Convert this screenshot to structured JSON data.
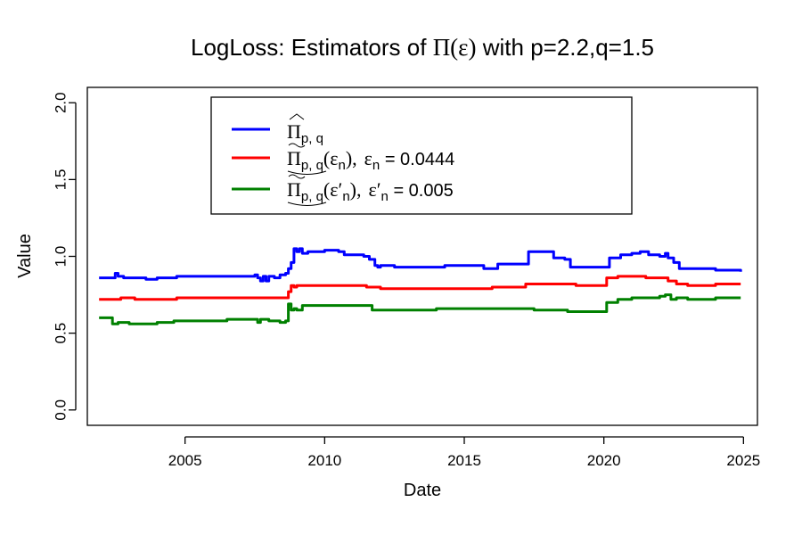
{
  "chart_data": {
    "type": "line",
    "title_prefix": "LogLoss: Estimators of ",
    "title_symbol": "Π(ε)",
    "title_suffix": " with p=2.2,q=1.5",
    "xlabel": "Date",
    "ylabel": "Value",
    "xlim": [
      2001.5,
      2025.5
    ],
    "ylim": [
      -0.1,
      2.1
    ],
    "x_ticks": [
      {
        "value": 2005,
        "label": "2005"
      },
      {
        "value": 2010,
        "label": "2010"
      },
      {
        "value": 2015,
        "label": "2015"
      },
      {
        "value": 2020,
        "label": "2020"
      },
      {
        "value": 2025,
        "label": "2025"
      }
    ],
    "y_ticks": [
      {
        "value": 0.0,
        "label": "0.0"
      },
      {
        "value": 0.5,
        "label": "0.5"
      },
      {
        "value": 1.0,
        "label": "1.0"
      },
      {
        "value": 1.5,
        "label": "1.5"
      },
      {
        "value": 2.0,
        "label": "2.0"
      }
    ],
    "legend": {
      "placement": "top-center",
      "entries": [
        {
          "symbol": "Π",
          "sub": "p, q",
          "rest": "",
          "eq_symbol": "",
          "eq_sub": "",
          "eq_value": ""
        },
        {
          "symbol": "Π",
          "sub": "p, q",
          "rest": "(ε",
          "rest_sub": "n",
          "rest_close": "),",
          "eq_symbol": "ε",
          "eq_sub": "n",
          "eq_value": " = 0.0444"
        },
        {
          "symbol": "Π",
          "sub": "p, q",
          "rest": "(ε′",
          "rest_sub": "n",
          "rest_close": "),",
          "eq_symbol": "ε′",
          "eq_sub": "n",
          "eq_value": " = 0.005"
        }
      ]
    },
    "series": [
      {
        "name": "Π̂ p,q",
        "color": "#0000ff",
        "points": [
          [
            2001.92,
            0.86
          ],
          [
            2002.4,
            0.86
          ],
          [
            2002.5,
            0.89
          ],
          [
            2002.6,
            0.87
          ],
          [
            2002.8,
            0.86
          ],
          [
            2003.5,
            0.86
          ],
          [
            2003.6,
            0.85
          ],
          [
            2004.0,
            0.86
          ],
          [
            2004.6,
            0.86
          ],
          [
            2004.7,
            0.87
          ],
          [
            2005.5,
            0.87
          ],
          [
            2006.5,
            0.87
          ],
          [
            2007.3,
            0.87
          ],
          [
            2007.5,
            0.88
          ],
          [
            2007.6,
            0.86
          ],
          [
            2007.7,
            0.84
          ],
          [
            2007.8,
            0.87
          ],
          [
            2007.9,
            0.84
          ],
          [
            2008.0,
            0.87
          ],
          [
            2008.2,
            0.86
          ],
          [
            2008.4,
            0.88
          ],
          [
            2008.6,
            0.89
          ],
          [
            2008.7,
            0.92
          ],
          [
            2008.8,
            0.96
          ],
          [
            2008.9,
            1.05
          ],
          [
            2009.0,
            1.03
          ],
          [
            2009.1,
            1.05
          ],
          [
            2009.2,
            1.02
          ],
          [
            2009.4,
            1.03
          ],
          [
            2010.0,
            1.04
          ],
          [
            2010.5,
            1.03
          ],
          [
            2010.7,
            1.01
          ],
          [
            2011.4,
            1.0
          ],
          [
            2011.6,
            0.98
          ],
          [
            2011.8,
            0.94
          ],
          [
            2011.9,
            0.93
          ],
          [
            2012.0,
            0.94
          ],
          [
            2012.5,
            0.93
          ],
          [
            2013.5,
            0.93
          ],
          [
            2014.0,
            0.93
          ],
          [
            2014.3,
            0.94
          ],
          [
            2015.5,
            0.94
          ],
          [
            2015.7,
            0.92
          ],
          [
            2016.0,
            0.92
          ],
          [
            2016.2,
            0.95
          ],
          [
            2017.0,
            0.95
          ],
          [
            2017.3,
            1.03
          ],
          [
            2018.0,
            1.03
          ],
          [
            2018.2,
            0.99
          ],
          [
            2018.6,
            0.98
          ],
          [
            2018.8,
            0.93
          ],
          [
            2019.9,
            0.93
          ],
          [
            2020.2,
            0.99
          ],
          [
            2020.6,
            1.01
          ],
          [
            2021.0,
            1.02
          ],
          [
            2021.3,
            1.03
          ],
          [
            2021.6,
            1.01
          ],
          [
            2022.0,
            1.0
          ],
          [
            2022.2,
            1.02
          ],
          [
            2022.3,
            0.99
          ],
          [
            2022.5,
            0.96
          ],
          [
            2022.7,
            0.92
          ],
          [
            2024.0,
            0.91
          ],
          [
            2024.5,
            0.91
          ],
          [
            2024.9,
            0.9
          ]
        ]
      },
      {
        "name": "Π p,q(ε n)",
        "color": "#ff0000",
        "points": [
          [
            2001.92,
            0.72
          ],
          [
            2002.6,
            0.72
          ],
          [
            2002.7,
            0.73
          ],
          [
            2003.2,
            0.72
          ],
          [
            2004.6,
            0.72
          ],
          [
            2004.7,
            0.73
          ],
          [
            2006.0,
            0.73
          ],
          [
            2007.5,
            0.73
          ],
          [
            2008.0,
            0.73
          ],
          [
            2008.6,
            0.73
          ],
          [
            2008.7,
            0.77
          ],
          [
            2008.8,
            0.81
          ],
          [
            2008.9,
            0.8
          ],
          [
            2009.0,
            0.81
          ],
          [
            2010.0,
            0.81
          ],
          [
            2011.0,
            0.81
          ],
          [
            2011.5,
            0.8
          ],
          [
            2012.0,
            0.79
          ],
          [
            2014.0,
            0.79
          ],
          [
            2015.5,
            0.79
          ],
          [
            2016.0,
            0.8
          ],
          [
            2016.8,
            0.8
          ],
          [
            2017.2,
            0.82
          ],
          [
            2018.5,
            0.82
          ],
          [
            2019.0,
            0.81
          ],
          [
            2019.9,
            0.81
          ],
          [
            2020.1,
            0.86
          ],
          [
            2020.5,
            0.87
          ],
          [
            2021.5,
            0.86
          ],
          [
            2022.0,
            0.86
          ],
          [
            2022.3,
            0.84
          ],
          [
            2022.6,
            0.82
          ],
          [
            2023.0,
            0.81
          ],
          [
            2024.0,
            0.82
          ],
          [
            2024.9,
            0.82
          ]
        ]
      },
      {
        "name": "Π p,q(ε′ n)",
        "color": "#008000",
        "points": [
          [
            2001.92,
            0.6
          ],
          [
            2002.3,
            0.6
          ],
          [
            2002.4,
            0.56
          ],
          [
            2002.6,
            0.57
          ],
          [
            2003.0,
            0.56
          ],
          [
            2004.0,
            0.57
          ],
          [
            2004.6,
            0.58
          ],
          [
            2005.5,
            0.58
          ],
          [
            2006.5,
            0.59
          ],
          [
            2007.5,
            0.59
          ],
          [
            2007.6,
            0.57
          ],
          [
            2007.7,
            0.59
          ],
          [
            2008.0,
            0.58
          ],
          [
            2008.4,
            0.57
          ],
          [
            2008.6,
            0.58
          ],
          [
            2008.7,
            0.69
          ],
          [
            2008.8,
            0.65
          ],
          [
            2008.9,
            0.66
          ],
          [
            2009.0,
            0.65
          ],
          [
            2009.2,
            0.68
          ],
          [
            2010.0,
            0.68
          ],
          [
            2011.5,
            0.68
          ],
          [
            2011.7,
            0.65
          ],
          [
            2012.0,
            0.65
          ],
          [
            2013.0,
            0.65
          ],
          [
            2014.0,
            0.66
          ],
          [
            2016.0,
            0.66
          ],
          [
            2017.5,
            0.65
          ],
          [
            2018.5,
            0.65
          ],
          [
            2018.7,
            0.64
          ],
          [
            2019.9,
            0.64
          ],
          [
            2020.1,
            0.7
          ],
          [
            2020.5,
            0.72
          ],
          [
            2021.0,
            0.73
          ],
          [
            2021.5,
            0.73
          ],
          [
            2022.0,
            0.74
          ],
          [
            2022.2,
            0.75
          ],
          [
            2022.4,
            0.72
          ],
          [
            2022.6,
            0.73
          ],
          [
            2023.0,
            0.72
          ],
          [
            2024.0,
            0.73
          ],
          [
            2024.9,
            0.73
          ]
        ]
      }
    ]
  }
}
